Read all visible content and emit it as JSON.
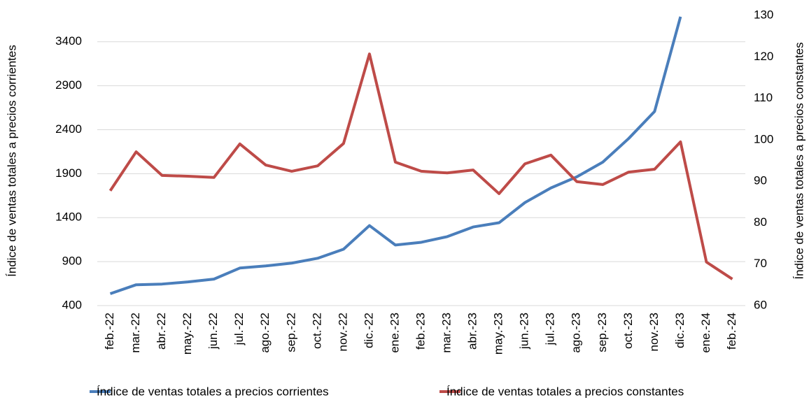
{
  "chart_data": {
    "type": "line",
    "categories": [
      "feb.-22",
      "mar.-22",
      "abr.-22",
      "may.-22",
      "jun.-22",
      "jul.-22",
      "ago.-22",
      "sep.-22",
      "oct.-22",
      "nov.-22",
      "dic.-22",
      "ene.-23",
      "feb.-23",
      "mar.-23",
      "abr.-23",
      "may.-23",
      "jun.-23",
      "jul.-23",
      "ago.-23",
      "sep.-23",
      "oct.-23",
      "nov.-23",
      "dic.-23",
      "ene.-24",
      "feb.-24"
    ],
    "series": [
      {
        "name": "Índice de ventas totales a precios corrientes",
        "color": "#4a7ebb",
        "values": [
          535,
          637,
          645,
          669,
          701,
          827,
          851,
          883,
          938,
          1041,
          1310,
          1089,
          1120,
          1184,
          1294,
          1342,
          1572,
          1738,
          1864,
          2031,
          2300,
          2608,
          3685,
          null,
          null
        ]
      },
      {
        "name": "Índice de ventas totales a precios constantes",
        "color": "#be4b48",
        "axis": "y2",
        "values": [
          87.7,
          97.1,
          91.4,
          91.2,
          90.9,
          99.0,
          93.9,
          92.4,
          93.7,
          99.1,
          120.7,
          94.6,
          92.4,
          92.0,
          92.7,
          87.0,
          94.2,
          96.3,
          89.9,
          89.2,
          92.2,
          92.9,
          99.5,
          70.5,
          66.4
        ]
      }
    ],
    "y_label": "Índice de ventas totales  a precios corrientes",
    "y2_label": "Índice de ventas totales a precios constantes",
    "ylim": [
      400,
      3700
    ],
    "yticks": [
      400,
      900,
      1400,
      1900,
      2400,
      2900,
      3400
    ],
    "y2lim": [
      60,
      130
    ],
    "y2ticks": [
      60,
      70,
      80,
      90,
      100,
      110,
      120,
      130
    ],
    "grid": true
  }
}
